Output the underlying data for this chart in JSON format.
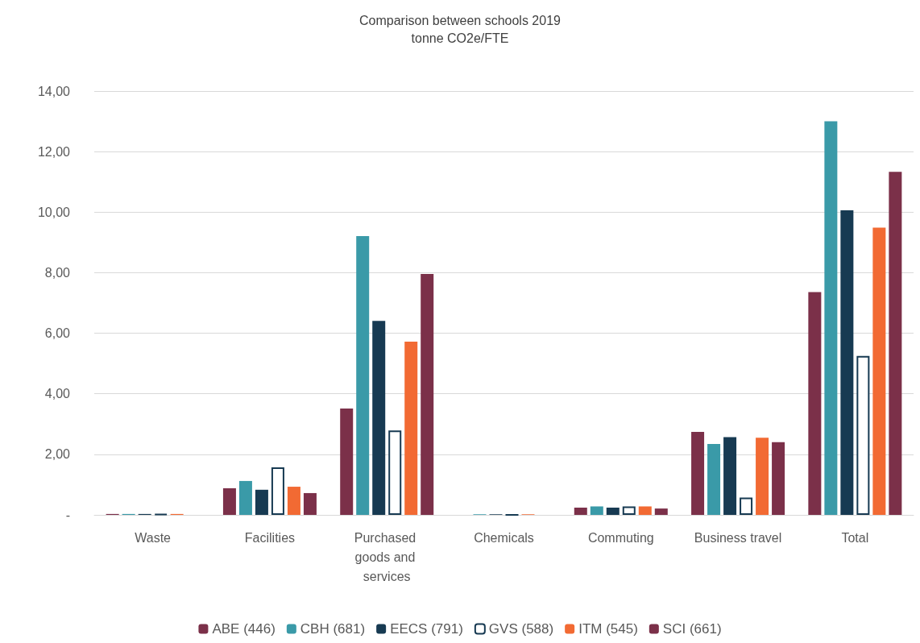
{
  "chart_data": {
    "type": "bar",
    "title": "Comparison between schools 2019",
    "subtitle": "tonne CO2e/FTE",
    "categories": [
      "Waste",
      "Facilities",
      "Purchased goods and services",
      "Chemicals",
      "Commuting",
      "Business travel",
      "Total"
    ],
    "series": [
      {
        "name": "ABE (446)",
        "color": "#7b3049",
        "values": [
          0.03,
          0.88,
          3.51,
          0,
          0.24,
          2.74,
          7.36
        ]
      },
      {
        "name": "CBH (681)",
        "color": "#3a9aa8",
        "values": [
          0.03,
          1.12,
          9.21,
          0.02,
          0.28,
          2.34,
          13.0
        ]
      },
      {
        "name": "EECS (791)",
        "color": "#173a52",
        "values": [
          0.03,
          0.83,
          6.41,
          0.02,
          0.24,
          2.57,
          10.06
        ]
      },
      {
        "name": "GVS (588)",
        "color": "#173a52",
        "values": [
          0.03,
          1.57,
          2.79,
          0,
          0.28,
          0.57,
          5.25
        ]
      },
      {
        "name": "ITM (545)",
        "color": "#f26a33",
        "values": [
          0.03,
          0.93,
          5.72,
          0.02,
          0.28,
          2.55,
          9.49
        ]
      },
      {
        "name": "SCI (661)",
        "color": "#7b3049",
        "values": [
          0,
          0.72,
          7.96,
          0,
          0.21,
          2.4,
          11.33
        ]
      }
    ],
    "ylim": [
      0,
      14
    ],
    "yticks": [
      {
        "value": 0,
        "label": "-"
      },
      {
        "value": 2,
        "label": "2,00"
      },
      {
        "value": 4,
        "label": "4,00"
      },
      {
        "value": 6,
        "label": "6,00"
      },
      {
        "value": 8,
        "label": "8,00"
      },
      {
        "value": 10,
        "label": "10,00"
      },
      {
        "value": 12,
        "label": "12,00"
      },
      {
        "value": 14,
        "label": "14,00"
      }
    ],
    "grid": "y",
    "legend": "bottom"
  }
}
